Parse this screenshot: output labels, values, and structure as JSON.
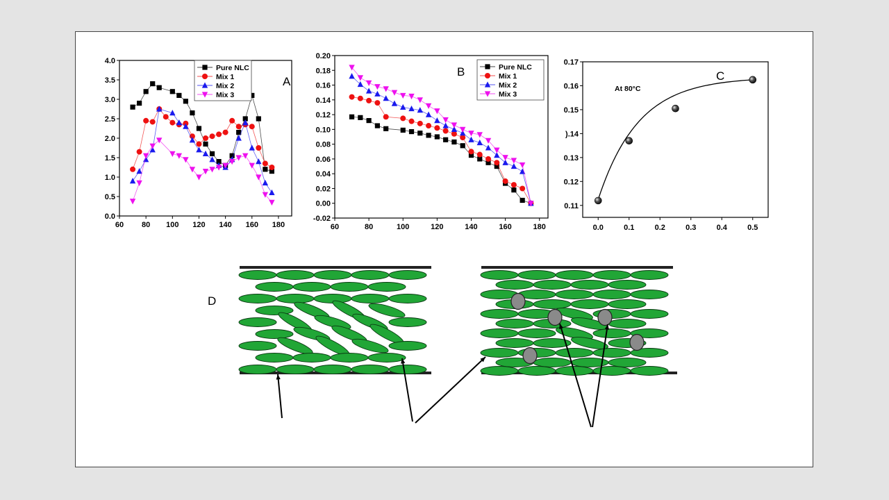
{
  "panels": {
    "A": {
      "label": "A"
    },
    "B": {
      "label": "B"
    },
    "C": {
      "label": "C",
      "annotation": "At 80°C"
    },
    "D": {
      "label": "D"
    }
  },
  "colors": {
    "Pure NLC": "#000000",
    "Mix 1": "#ee1111",
    "Mix 2": "#1a1aee",
    "Mix 3": "#ee11ee",
    "lipid": "#21a636",
    "additive": "#8a8a8a"
  },
  "chart_data": [
    {
      "id": "A",
      "type": "line",
      "xlim": [
        60,
        190
      ],
      "ylim": [
        0,
        4.0
      ],
      "x_ticks": [
        60,
        80,
        100,
        120,
        140,
        160,
        180
      ],
      "y_ticks": [
        "0.0",
        "0.5",
        "1.0",
        "1.5",
        "2.0",
        "2.5",
        "3.0",
        "3.5",
        "4.0"
      ],
      "legend_position": "top-right",
      "series": [
        {
          "name": "Pure NLC",
          "marker": "square",
          "x": [
            70,
            75,
            80,
            85,
            90,
            100,
            105,
            110,
            115,
            120,
            125,
            130,
            135,
            140,
            145,
            150,
            155,
            160,
            165,
            170,
            175
          ],
          "y": [
            2.8,
            2.9,
            3.2,
            3.4,
            3.3,
            3.2,
            3.1,
            2.95,
            2.65,
            2.25,
            1.85,
            1.6,
            1.4,
            1.3,
            1.55,
            2.15,
            2.5,
            3.1,
            2.5,
            1.2,
            1.15
          ]
        },
        {
          "name": "Mix 1",
          "marker": "circle",
          "x": [
            70,
            75,
            80,
            85,
            90,
            95,
            100,
            105,
            110,
            115,
            120,
            125,
            130,
            135,
            140,
            145,
            150,
            155,
            160,
            165,
            170,
            175
          ],
          "y": [
            1.2,
            1.65,
            2.45,
            2.42,
            2.75,
            2.55,
            2.4,
            2.35,
            2.38,
            2.05,
            1.85,
            2.0,
            2.05,
            2.1,
            2.15,
            2.45,
            2.3,
            2.35,
            2.3,
            1.75,
            1.35,
            1.25
          ]
        },
        {
          "name": "Mix 2",
          "marker": "triangle-up",
          "x": [
            70,
            75,
            80,
            85,
            90,
            100,
            105,
            110,
            115,
            120,
            125,
            130,
            135,
            140,
            145,
            150,
            155,
            160,
            165,
            170,
            175
          ],
          "y": [
            0.9,
            1.15,
            1.45,
            1.7,
            2.75,
            2.65,
            2.4,
            2.3,
            1.95,
            1.7,
            1.6,
            1.45,
            1.3,
            1.25,
            1.45,
            2.0,
            2.4,
            1.75,
            1.4,
            0.85,
            0.6
          ]
        },
        {
          "name": "Mix 3",
          "marker": "triangle-down",
          "x": [
            70,
            75,
            80,
            85,
            90,
            100,
            105,
            110,
            115,
            120,
            125,
            130,
            135,
            140,
            145,
            150,
            155,
            160,
            165,
            170,
            175
          ],
          "y": [
            0.38,
            0.85,
            1.55,
            1.8,
            1.95,
            1.6,
            1.55,
            1.45,
            1.2,
            1.0,
            1.15,
            1.2,
            1.25,
            1.3,
            1.4,
            1.5,
            1.55,
            1.3,
            1.0,
            0.55,
            0.35
          ]
        }
      ]
    },
    {
      "id": "B",
      "type": "line",
      "xlim": [
        60,
        185
      ],
      "ylim": [
        -0.02,
        0.2
      ],
      "x_ticks": [
        60,
        80,
        100,
        120,
        140,
        160,
        180
      ],
      "y_ticks": [
        "-0.02",
        "0.00",
        "0.02",
        "0.04",
        "0.06",
        "0.08",
        "0.10",
        "0.12",
        "0.14",
        "0.16",
        "0.18",
        "0.20"
      ],
      "legend_position": "top-right",
      "series": [
        {
          "name": "Pure NLC",
          "marker": "square",
          "x": [
            70,
            75,
            80,
            85,
            90,
            100,
            105,
            110,
            115,
            120,
            125,
            130,
            135,
            140,
            145,
            150,
            155,
            160,
            165,
            170,
            175
          ],
          "y": [
            0.117,
            0.116,
            0.112,
            0.105,
            0.101,
            0.099,
            0.097,
            0.095,
            0.092,
            0.09,
            0.086,
            0.083,
            0.078,
            0.065,
            0.06,
            0.055,
            0.05,
            0.027,
            0.018,
            0.004,
            0.0
          ]
        },
        {
          "name": "Mix 1",
          "marker": "circle",
          "x": [
            70,
            75,
            80,
            85,
            90,
            100,
            105,
            110,
            115,
            120,
            125,
            130,
            135,
            140,
            145,
            150,
            155,
            160,
            165,
            170,
            175
          ],
          "y": [
            0.144,
            0.142,
            0.139,
            0.136,
            0.117,
            0.115,
            0.111,
            0.108,
            0.105,
            0.102,
            0.098,
            0.094,
            0.089,
            0.07,
            0.066,
            0.06,
            0.055,
            0.03,
            0.025,
            0.02,
            0.0
          ]
        },
        {
          "name": "Mix 2",
          "marker": "triangle-up",
          "x": [
            70,
            75,
            80,
            85,
            90,
            95,
            100,
            105,
            110,
            115,
            120,
            125,
            130,
            135,
            140,
            145,
            150,
            155,
            160,
            165,
            170,
            175
          ],
          "y": [
            0.172,
            0.161,
            0.152,
            0.148,
            0.142,
            0.135,
            0.13,
            0.128,
            0.126,
            0.12,
            0.112,
            0.105,
            0.1,
            0.095,
            0.086,
            0.082,
            0.075,
            0.065,
            0.055,
            0.05,
            0.043,
            0.0
          ]
        },
        {
          "name": "Mix 3",
          "marker": "triangle-down",
          "x": [
            70,
            75,
            80,
            85,
            90,
            95,
            100,
            105,
            110,
            115,
            120,
            125,
            130,
            135,
            140,
            145,
            150,
            155,
            160,
            165,
            170,
            175
          ],
          "y": [
            0.184,
            0.17,
            0.163,
            0.158,
            0.155,
            0.15,
            0.146,
            0.145,
            0.14,
            0.132,
            0.125,
            0.113,
            0.106,
            0.1,
            0.095,
            0.093,
            0.085,
            0.072,
            0.062,
            0.058,
            0.052,
            0.0
          ]
        }
      ]
    },
    {
      "id": "C",
      "type": "scatter",
      "xlim": [
        -0.05,
        0.55
      ],
      "ylim": [
        0.105,
        0.17
      ],
      "x_ticks": [
        "0.0",
        "0.1",
        "0.2",
        "0.3",
        "0.4",
        "0.5"
      ],
      "y_ticks": [
        "0.11",
        "0.12",
        "0.13",
        ").14",
        "0.15",
        "0.16",
        "0.17"
      ],
      "points": [
        {
          "x": 0.0,
          "y": 0.112
        },
        {
          "x": 0.1,
          "y": 0.137
        },
        {
          "x": 0.25,
          "y": 0.1505
        },
        {
          "x": 0.5,
          "y": 0.1625
        }
      ],
      "fit_curve": "smooth"
    }
  ]
}
